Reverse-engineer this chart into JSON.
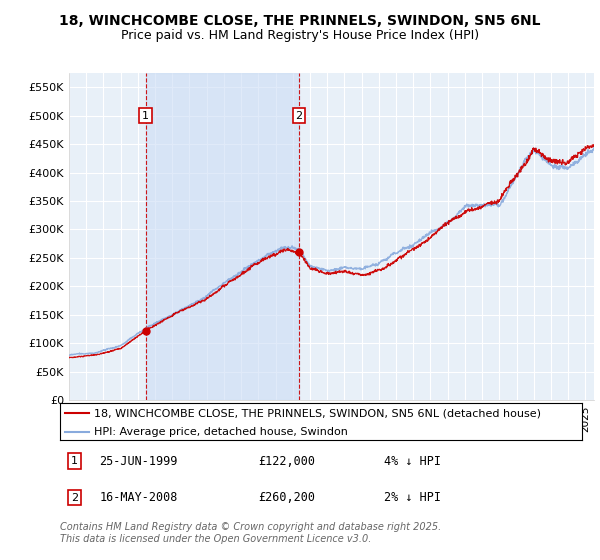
{
  "title": "18, WINCHCOMBE CLOSE, THE PRINNELS, SWINDON, SN5 6NL",
  "subtitle": "Price paid vs. HM Land Registry's House Price Index (HPI)",
  "ylim": [
    0,
    575000
  ],
  "yticks": [
    0,
    50000,
    100000,
    150000,
    200000,
    250000,
    300000,
    350000,
    400000,
    450000,
    500000,
    550000
  ],
  "ytick_labels": [
    "£0",
    "£50K",
    "£100K",
    "£150K",
    "£200K",
    "£250K",
    "£300K",
    "£350K",
    "£400K",
    "£450K",
    "£500K",
    "£550K"
  ],
  "sale1_t": 1999.46,
  "sale1_price": 122000,
  "sale1_date": "25-JUN-1999",
  "sale1_label": "4% ↓ HPI",
  "sale2_t": 2008.37,
  "sale2_price": 260200,
  "sale2_date": "16-MAY-2008",
  "sale2_label": "2% ↓ HPI",
  "legend_property": "18, WINCHCOMBE CLOSE, THE PRINNELS, SWINDON, SN5 6NL (detached house)",
  "legend_hpi": "HPI: Average price, detached house, Swindon",
  "line_color_property": "#cc0000",
  "line_color_hpi": "#88aadd",
  "marker_color": "#cc0000",
  "vline_color": "#cc0000",
  "shade_color": "#ddeeff",
  "background_color": "#e8f0f8",
  "grid_color": "#ffffff",
  "footer": "Contains HM Land Registry data © Crown copyright and database right 2025.\nThis data is licensed under the Open Government Licence v3.0.",
  "title_fontsize": 10,
  "subtitle_fontsize": 9,
  "tick_fontsize": 8,
  "legend_fontsize": 8,
  "footer_fontsize": 7,
  "xlim_start": 1995.0,
  "xlim_end": 2025.5
}
